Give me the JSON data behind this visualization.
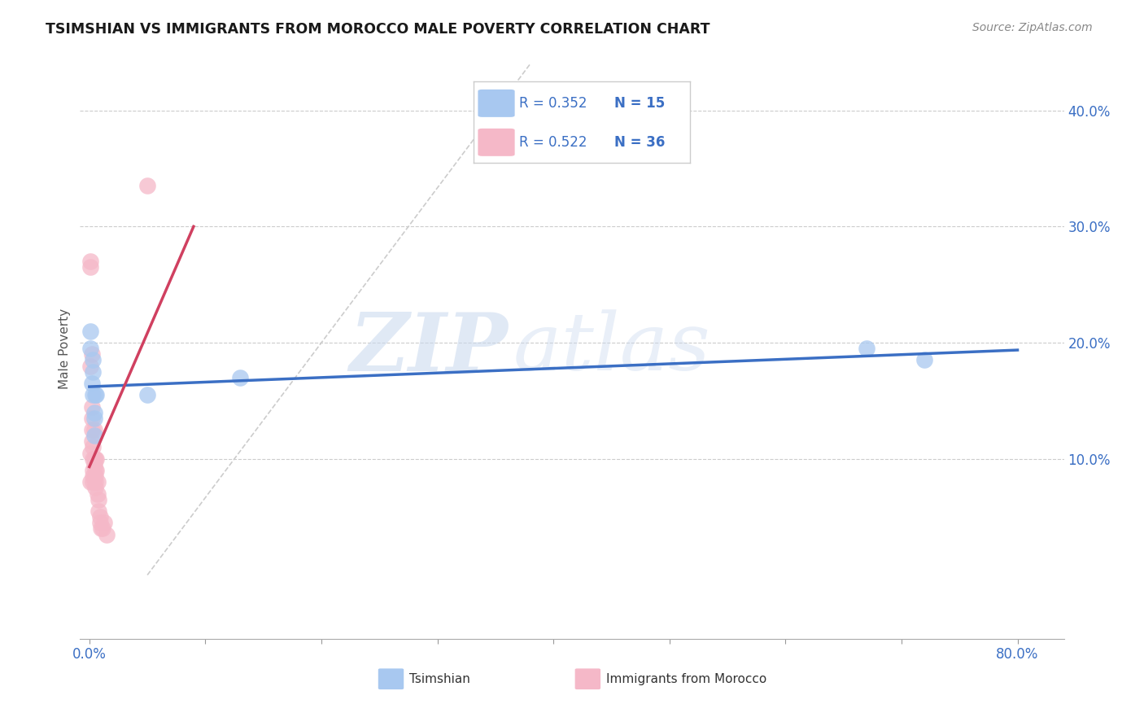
{
  "title": "TSIMSHIAN VS IMMIGRANTS FROM MOROCCO MALE POVERTY CORRELATION CHART",
  "source": "Source: ZipAtlas.com",
  "ylabel": "Male Poverty",
  "ytick_labels": [
    "10.0%",
    "20.0%",
    "30.0%",
    "40.0%"
  ],
  "ytick_values": [
    0.1,
    0.2,
    0.3,
    0.4
  ],
  "xlim": [
    -0.008,
    0.84
  ],
  "ylim": [
    -0.055,
    0.445
  ],
  "watermark_zip": "ZIP",
  "watermark_atlas": "atlas",
  "legend_entries": [
    {
      "R": "R = 0.352",
      "N": "N = 15",
      "color": "#A8C8F0"
    },
    {
      "R": "R = 0.522",
      "N": "N = 36",
      "color": "#F5B8C8"
    }
  ],
  "color_tsimshian": "#A8C8F0",
  "color_morocco": "#F5B8C8",
  "color_line_tsimshian": "#3B6FC4",
  "color_line_morocco": "#D04060",
  "color_diag": "#CCCCCC",
  "tsimshian_x": [
    0.001,
    0.001,
    0.002,
    0.003,
    0.003,
    0.003,
    0.004,
    0.004,
    0.004,
    0.005,
    0.006,
    0.05,
    0.13,
    0.67,
    0.72
  ],
  "tsimshian_y": [
    0.195,
    0.21,
    0.165,
    0.185,
    0.175,
    0.155,
    0.135,
    0.14,
    0.12,
    0.155,
    0.155,
    0.155,
    0.17,
    0.195,
    0.185
  ],
  "morocco_x": [
    0.001,
    0.001,
    0.001,
    0.001,
    0.001,
    0.002,
    0.002,
    0.002,
    0.002,
    0.002,
    0.003,
    0.003,
    0.003,
    0.003,
    0.003,
    0.004,
    0.004,
    0.004,
    0.005,
    0.005,
    0.005,
    0.005,
    0.005,
    0.006,
    0.006,
    0.007,
    0.007,
    0.008,
    0.008,
    0.009,
    0.009,
    0.01,
    0.011,
    0.013,
    0.015,
    0.05
  ],
  "morocco_y": [
    0.265,
    0.27,
    0.18,
    0.105,
    0.08,
    0.19,
    0.145,
    0.135,
    0.125,
    0.115,
    0.085,
    0.09,
    0.1,
    0.11,
    0.08,
    0.125,
    0.1,
    0.095,
    0.08,
    0.085,
    0.09,
    0.1,
    0.075,
    0.09,
    0.1,
    0.07,
    0.08,
    0.065,
    0.055,
    0.05,
    0.045,
    0.04,
    0.04,
    0.045,
    0.035,
    0.335
  ],
  "bg_color": "#FFFFFF",
  "grid_color": "#CCCCCC",
  "blue_text_color": "#3B6FC4"
}
